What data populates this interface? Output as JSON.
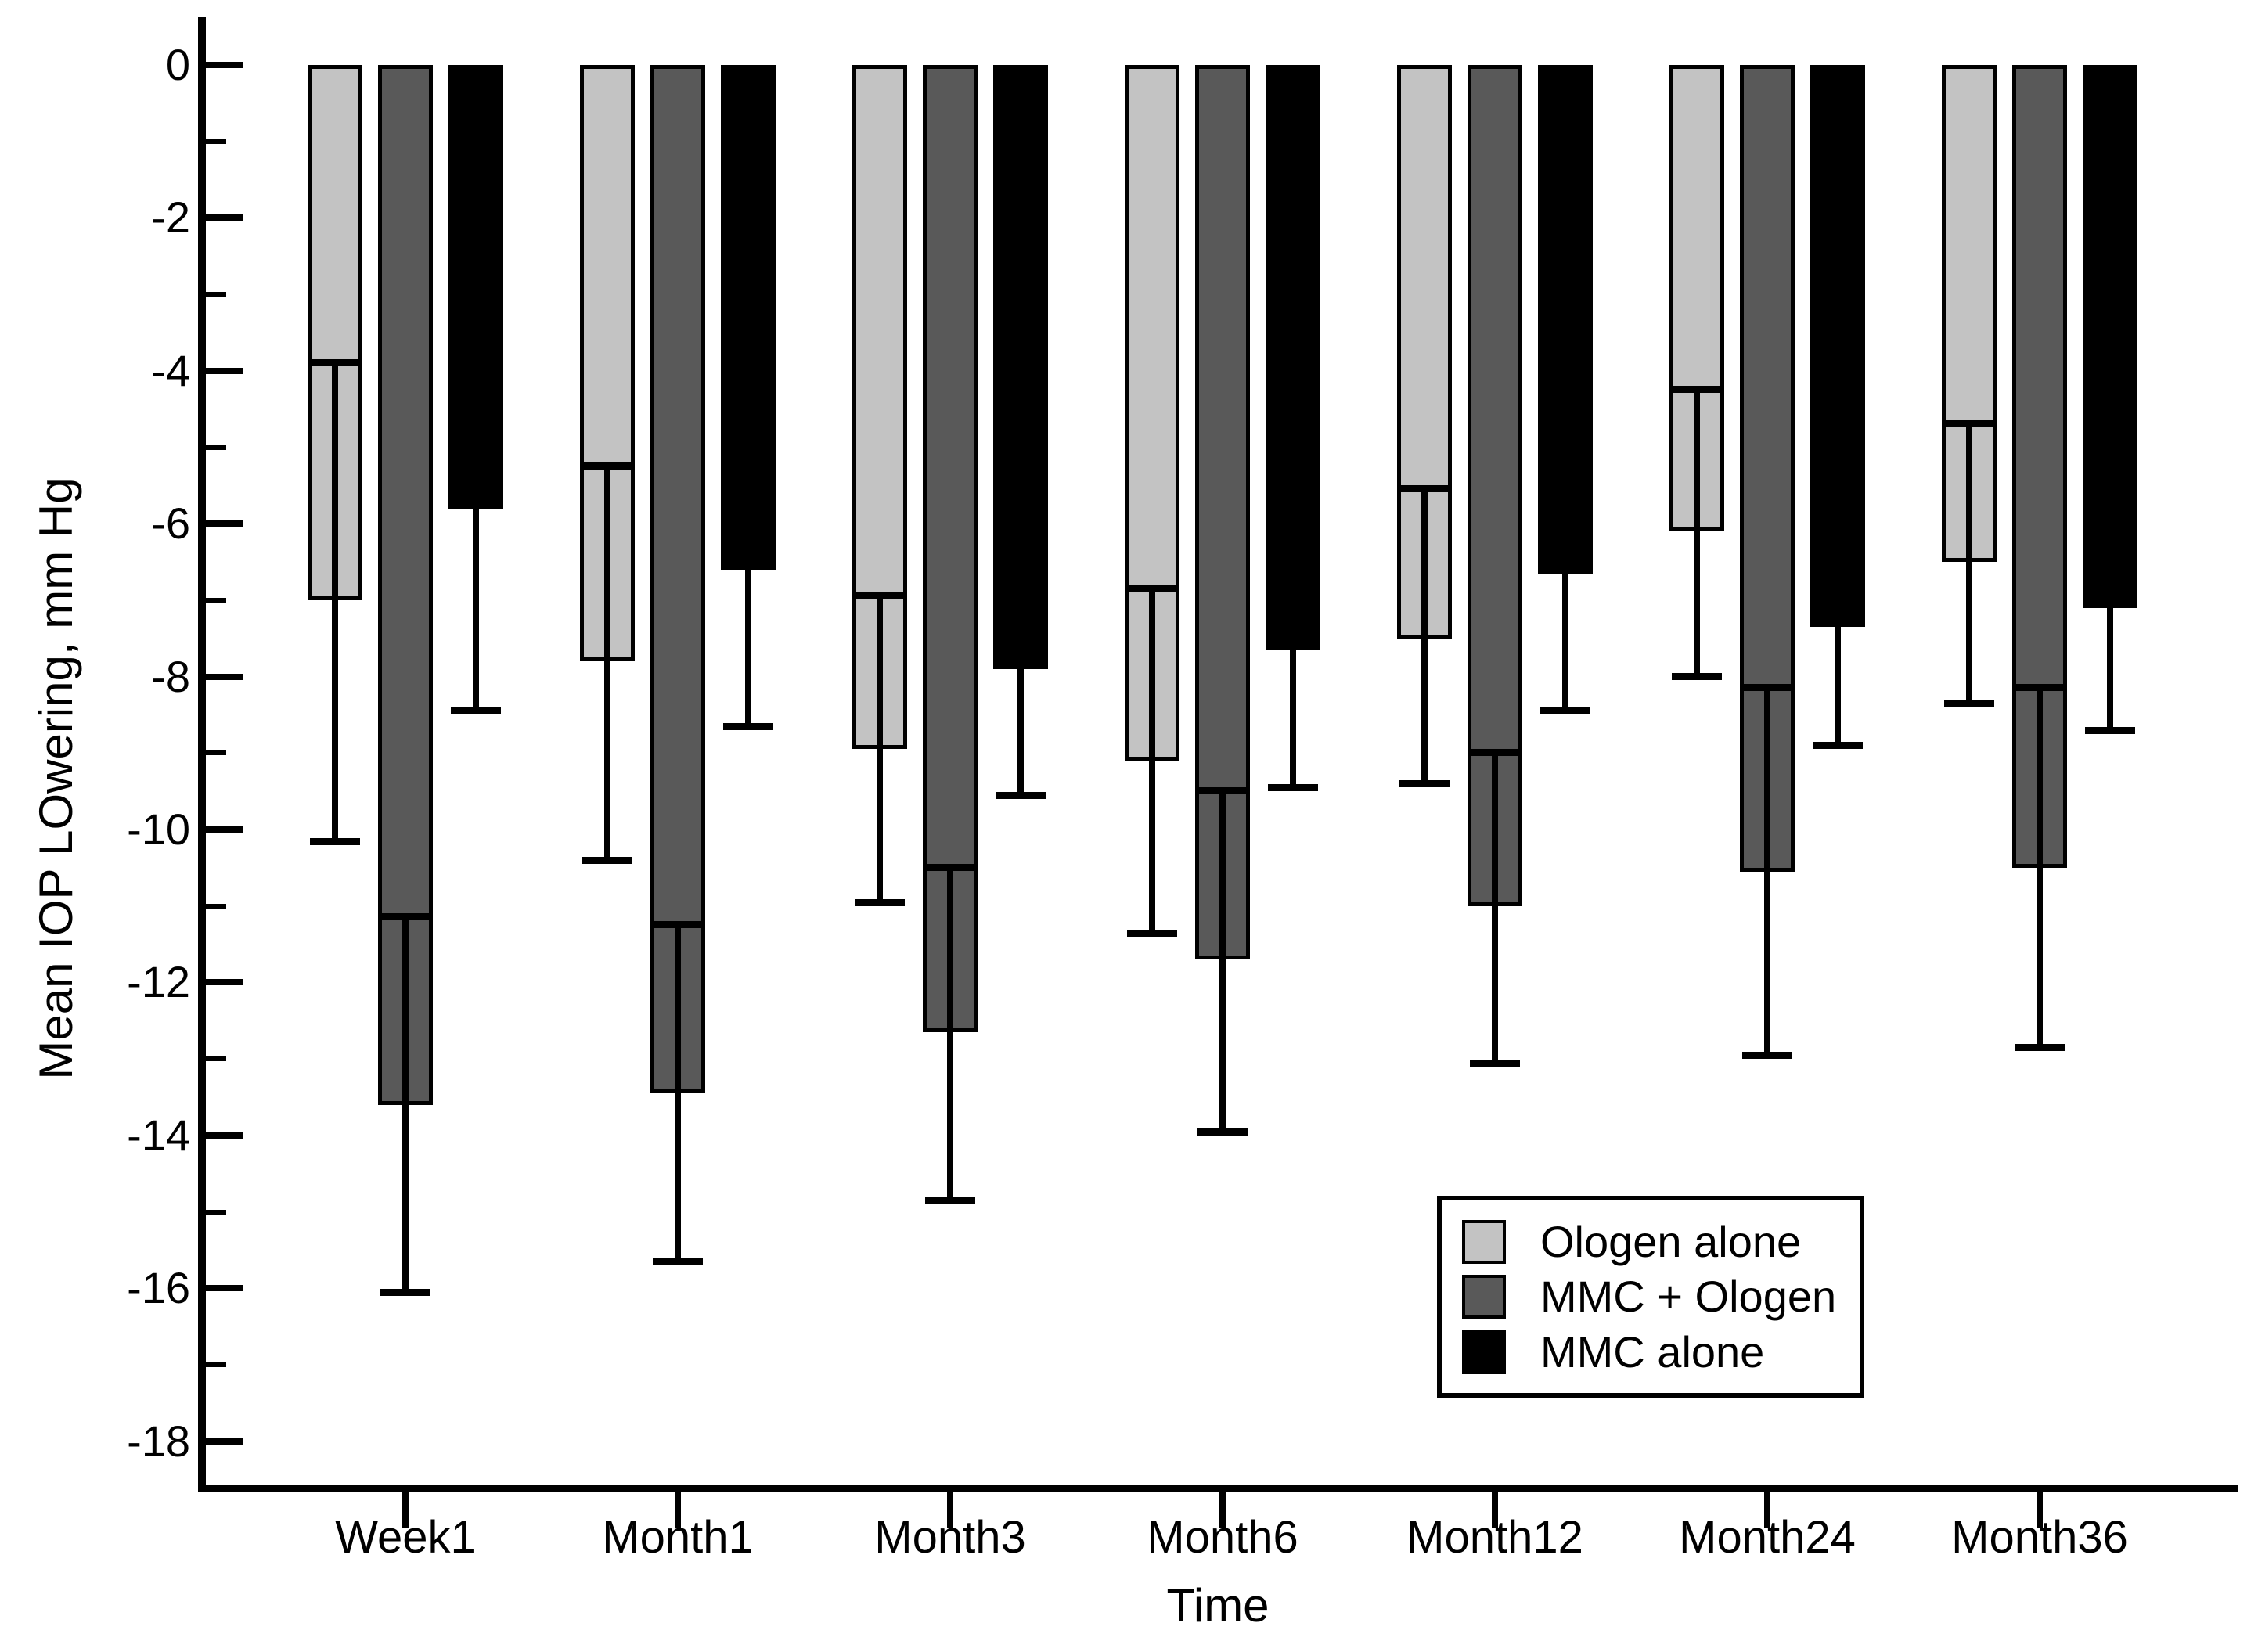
{
  "figure": {
    "background": "#ffffff",
    "axis_color": "#000000"
  },
  "y_axis": {
    "title": "Mean IOP LOwering, mm Hg",
    "tick_labels": [
      "0",
      "-2",
      "-4",
      "-6",
      "-8",
      "-10",
      "-12",
      "-14",
      "-16",
      "-18"
    ]
  },
  "x_axis": {
    "title": "Time",
    "tick_labels": [
      "Week1",
      "Month1",
      "Month3",
      "Month6",
      "Month12",
      "Month24",
      "Month36"
    ]
  },
  "legend": {
    "position": "lower-right",
    "items": [
      "Ologen alone",
      "MMC + Ologen",
      "MMC alone"
    ]
  },
  "chart_data": {
    "type": "bar",
    "title": "",
    "xlabel": "Time",
    "ylabel": "Mean IOP LOwering, mm Hg",
    "categories": [
      "Week1",
      "Month1",
      "Month3",
      "Month6",
      "Month12",
      "Month24",
      "Month36"
    ],
    "ylim": [
      0,
      -18
    ],
    "y_major_ticks": [
      0,
      -2,
      -4,
      -6,
      -8,
      -10,
      -12,
      -14,
      -16,
      -18
    ],
    "y_minor_ticks": [
      -1,
      -3,
      -5,
      -7,
      -9,
      -11,
      -13,
      -15,
      -17
    ],
    "grid": false,
    "error_bars": true,
    "legend_position": "lower-right",
    "series": [
      {
        "name": "Ologen alone",
        "color": "#c3c3c3",
        "values": [
          -7.0,
          -7.8,
          -8.95,
          -9.1,
          -7.5,
          -6.1,
          -6.5
        ],
        "err_high": [
          -3.85,
          -5.2,
          -6.9,
          -6.8,
          -5.5,
          -4.2,
          -4.65
        ],
        "err_low": [
          -10.2,
          -10.45,
          -11.0,
          -11.4,
          -9.45,
          -8.05,
          -8.4
        ]
      },
      {
        "name": "MMC + Ologen",
        "color": "#595959",
        "values": [
          -13.6,
          -13.45,
          -12.65,
          -11.7,
          -11.0,
          -10.55,
          -10.5
        ],
        "err_high": [
          -11.1,
          -11.2,
          -10.45,
          -9.45,
          -8.95,
          -8.1,
          -8.1
        ],
        "err_low": [
          -16.1,
          -15.7,
          -14.9,
          -14.0,
          -13.1,
          -13.0,
          -12.9
        ]
      },
      {
        "name": "MMC alone",
        "color": "#000000",
        "values": [
          -5.8,
          -6.6,
          -7.9,
          -7.65,
          -6.65,
          -7.35,
          -7.1
        ],
        "err_high": [
          null,
          null,
          null,
          null,
          null,
          null,
          null
        ],
        "err_low": [
          -8.5,
          -8.7,
          -9.6,
          -9.5,
          -8.5,
          -8.95,
          -8.75
        ]
      }
    ]
  }
}
